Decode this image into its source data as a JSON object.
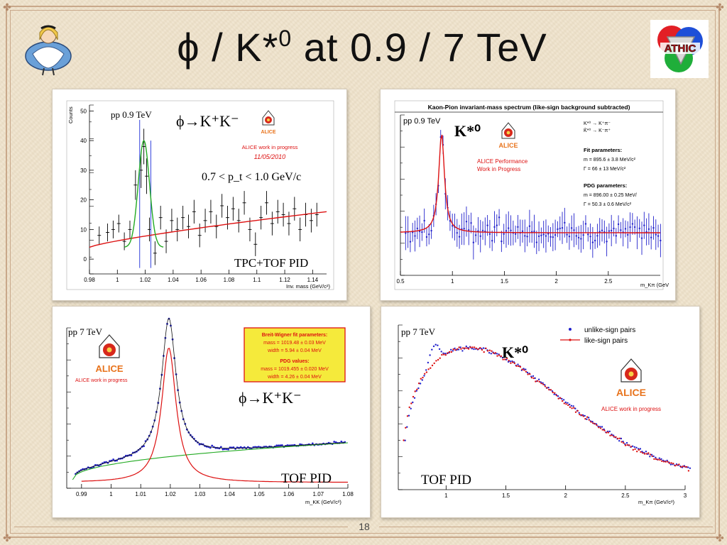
{
  "slide": {
    "title_main": "ϕ / K*",
    "title_sup": "0",
    "title_rest": " at 0.9 / 7 TeV",
    "page_number": "18",
    "logo_right_text": "ATHIC"
  },
  "colors": {
    "background": "#efe3cc",
    "frame": "#c9a88a",
    "data_blue": "#2222cc",
    "fit_red": "#dd1111",
    "fit_green": "#22aa22",
    "alice_orange": "#e8731c"
  },
  "chart_data": [
    {
      "type": "scatter",
      "panel": "top-left",
      "energy_label": "pp 0.9 TeV",
      "reaction": "ϕ→K⁺K⁻",
      "alice_label": "ALICE work in progress",
      "date": "11/05/2010",
      "cut": "0.7 < p_t < 1.0 GeV/c",
      "pid": "TPC+TOF PID",
      "ylabel": "Counts",
      "xlabel": "Inv. mass (GeV/c²)",
      "x_ticks": [
        "0.98",
        "1",
        "1.02",
        "1.04",
        "1.06",
        "1.08",
        "1.1",
        "1.12",
        "1.14"
      ],
      "y_ticks": [
        "0",
        "10",
        "20",
        "30",
        "40",
        "50"
      ],
      "xlim": [
        0.98,
        1.15
      ],
      "ylim": [
        -5,
        52
      ],
      "points": [
        {
          "x": 0.987,
          "y": 8,
          "e": 3
        },
        {
          "x": 0.993,
          "y": 9,
          "e": 3
        },
        {
          "x": 0.997,
          "y": 10,
          "e": 3
        },
        {
          "x": 1.001,
          "y": 12,
          "e": 3
        },
        {
          "x": 1.005,
          "y": 6,
          "e": 3
        },
        {
          "x": 1.009,
          "y": 10,
          "e": 3
        },
        {
          "x": 1.013,
          "y": 25,
          "e": 5
        },
        {
          "x": 1.017,
          "y": 30,
          "e": 6
        },
        {
          "x": 1.019,
          "y": 38,
          "e": 6
        },
        {
          "x": 1.021,
          "y": 28,
          "e": 6
        },
        {
          "x": 1.023,
          "y": 10,
          "e": 4
        },
        {
          "x": 1.027,
          "y": 2,
          "e": 4
        },
        {
          "x": 1.031,
          "y": 14,
          "e": 4
        },
        {
          "x": 1.035,
          "y": 6,
          "e": 4
        },
        {
          "x": 1.039,
          "y": 13,
          "e": 4
        },
        {
          "x": 1.043,
          "y": 10,
          "e": 4
        },
        {
          "x": 1.047,
          "y": 14,
          "e": 4
        },
        {
          "x": 1.051,
          "y": 11,
          "e": 4
        },
        {
          "x": 1.055,
          "y": 16,
          "e": 4
        },
        {
          "x": 1.059,
          "y": 8,
          "e": 4
        },
        {
          "x": 1.063,
          "y": 13,
          "e": 4
        },
        {
          "x": 1.067,
          "y": 16,
          "e": 4
        },
        {
          "x": 1.071,
          "y": 11,
          "e": 4
        },
        {
          "x": 1.075,
          "y": 18,
          "e": 4
        },
        {
          "x": 1.079,
          "y": 14,
          "e": 4
        },
        {
          "x": 1.083,
          "y": 17,
          "e": 4
        },
        {
          "x": 1.087,
          "y": 13,
          "e": 4
        },
        {
          "x": 1.091,
          "y": 19,
          "e": 4
        },
        {
          "x": 1.095,
          "y": 10,
          "e": 4
        },
        {
          "x": 1.099,
          "y": 5,
          "e": 4
        },
        {
          "x": 1.103,
          "y": 14,
          "e": 4
        },
        {
          "x": 1.107,
          "y": 19,
          "e": 4
        },
        {
          "x": 1.111,
          "y": 12,
          "e": 4
        },
        {
          "x": 1.115,
          "y": 16,
          "e": 4
        },
        {
          "x": 1.119,
          "y": 15,
          "e": 4
        },
        {
          "x": 1.123,
          "y": 12,
          "e": 4
        },
        {
          "x": 1.127,
          "y": 17,
          "e": 4
        },
        {
          "x": 1.131,
          "y": 10,
          "e": 4
        },
        {
          "x": 1.135,
          "y": 15,
          "e": 4
        },
        {
          "x": 1.139,
          "y": 13,
          "e": 4
        },
        {
          "x": 1.143,
          "y": 15,
          "e": 4
        }
      ],
      "bkg": {
        "x0": 0.98,
        "y0": 4,
        "x1": 1.15,
        "y1": 16
      },
      "peak": {
        "mass": 1.019,
        "height": 36,
        "width": 0.004
      }
    },
    {
      "type": "scatter",
      "panel": "top-right",
      "title": "Kaon-Pion invariant-mass spectrum (like-sign background subtracted)",
      "energy_label": "pp 0.9 TeV",
      "particle": "K*⁰",
      "alice_label_1": "ALICE Performance",
      "alice_label_2": "Work in Progress",
      "decays": [
        "K*⁰ → K⁺π⁻",
        "K̄*⁰ → K⁻π⁺"
      ],
      "fit_header": "Fit parameters:",
      "fit_m": "m = 895.6 ± 3.8 MeV/c²",
      "fit_gamma": "Γ = 66 ± 13 MeV/c²",
      "pdg_header": "PDG parameters:",
      "pdg_m": "m = 896.00 ± 0.25 MeV/",
      "pdg_gamma": "Γ = 50.3 ± 0.6 MeV/c²",
      "xlabel": "m_Kπ (GeV",
      "x_ticks": [
        "0.5",
        "1",
        "1.5",
        "2",
        "2.5"
      ],
      "xlim": [
        0.5,
        3.0
      ],
      "peak": {
        "mass": 0.896,
        "gamma": 0.066
      }
    },
    {
      "type": "scatter",
      "panel": "bottom-left",
      "energy_label": "pp 7 TeV",
      "alice_label": "ALICE work in progress",
      "reaction": "ϕ→K⁺K⁻",
      "pid": "TOF PID",
      "bw_header": "Breit-Wigner fit parameters:",
      "bw_mass": "mass = 1019.48 ± 0.03 MeV",
      "bw_width": "width = 5.94 ± 0.04 MeV",
      "pdg_header": "PDG values:",
      "pdg_mass": "mass = 1019.455 ± 0.020 MeV",
      "pdg_width": "width = 4.26 ± 0.04 MeV",
      "xlabel": "m_KK (GeV/c²)",
      "x_ticks": [
        "0.99",
        "1",
        "1.01",
        "1.02",
        "1.03",
        "1.04",
        "1.05",
        "1.06",
        "1.07",
        "1.08"
      ],
      "xlim": [
        0.985,
        1.08
      ],
      "peak": {
        "mass": 1.0195,
        "gamma": 0.0059
      }
    },
    {
      "type": "scatter",
      "panel": "bottom-right",
      "energy_label": "pp 7 TeV",
      "particle": "K*⁰",
      "legend": [
        "unlike-sign pairs",
        "like-sign pairs"
      ],
      "alice_label": "ALICE work in progress",
      "pid": "TOF PID",
      "xlabel": "m_Kπ (GeV/c²)",
      "x_ticks": [
        "1",
        "1.5",
        "2",
        "2.5",
        "3"
      ],
      "xlim": [
        0.6,
        3.0
      ]
    }
  ]
}
